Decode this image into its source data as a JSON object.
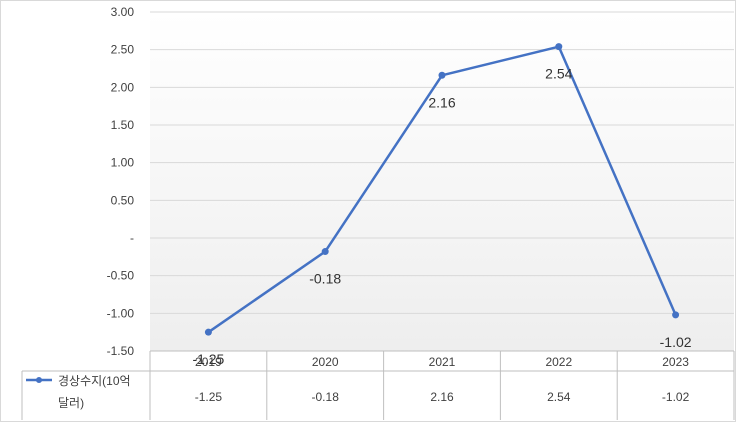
{
  "chart_data": {
    "type": "line",
    "categories": [
      "2019",
      "2020",
      "2021",
      "2022",
      "2023"
    ],
    "series": [
      {
        "name": "경상수지(10억 달러)",
        "name_lines": [
          "경상수지(10억",
          "달러)"
        ],
        "values": [
          -1.25,
          -0.18,
          2.16,
          2.54,
          -1.02
        ],
        "data_labels": [
          "-1.25",
          "-0.18",
          "2.16",
          "2.54",
          "-1.02"
        ],
        "table_values": [
          "-1.25",
          "-0.18",
          "2.16",
          "2.54",
          "-1.02"
        ],
        "color": "#4472c4"
      }
    ],
    "ylim": [
      -1.5,
      3.0
    ],
    "y_ticks": [
      3.0,
      2.5,
      2.0,
      1.5,
      1.0,
      0.5,
      0.0,
      -0.5,
      -1.0,
      -1.5
    ],
    "y_tick_labels": [
      "3.00",
      "2.50",
      "2.00",
      "1.50",
      "1.00",
      "0.50",
      "-",
      "-0.50",
      "-1.00",
      "-1.50"
    ],
    "grid": true,
    "legend": "data-table-bottom"
  }
}
